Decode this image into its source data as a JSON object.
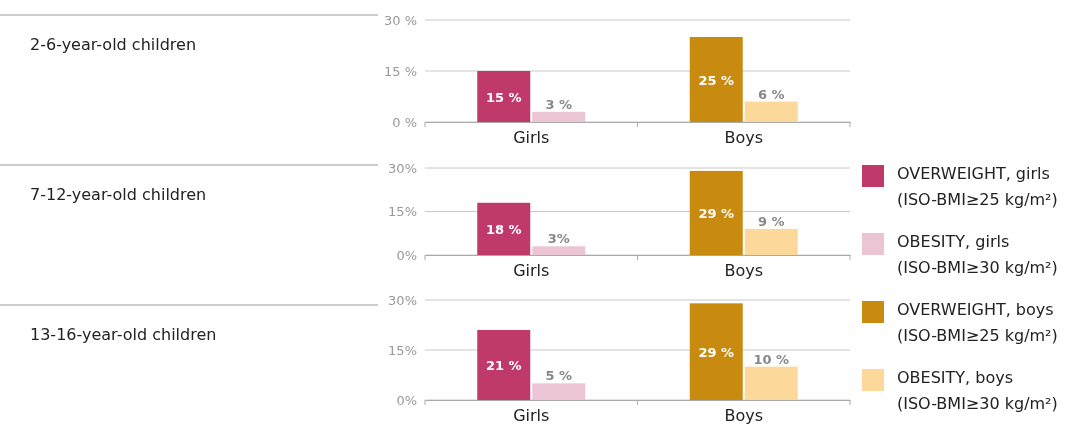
{
  "chart_data": [
    {
      "type": "bar",
      "ylabel": "2-6-year-old children",
      "categories": [
        "Girls",
        "Boys"
      ],
      "ylim": [
        0,
        30
      ],
      "yticks": [
        {
          "value": 0,
          "label": "0 %"
        },
        {
          "value": 15,
          "label": "15 %"
        },
        {
          "value": 30,
          "label": "30 %"
        }
      ],
      "grid": "y",
      "legend": "right",
      "series": [
        {
          "name": "OVERWEIGHT, girls (ISO-BMI≥25 kg/m²)",
          "color": "#c0396b",
          "values": [
            15,
            null
          ],
          "value_labels": [
            "15 %",
            null
          ]
        },
        {
          "name": "OBESITY, girls (ISO-BMI≥30 kg/m²)",
          "color": "#ecc5d5",
          "values": [
            3,
            null
          ],
          "value_labels": [
            "3 %",
            null
          ]
        },
        {
          "name": "OVERWEIGHT, boys (ISO-BMI≥25 kg/m²)",
          "color": "#c98a10",
          "values": [
            null,
            25
          ],
          "value_labels": [
            null,
            "25 %"
          ]
        },
        {
          "name": "OBESITY, boys (ISO-BMI≥30 kg/m²)",
          "color": "#fcd89a",
          "values": [
            null,
            6
          ],
          "value_labels": [
            null,
            "6 %"
          ]
        }
      ]
    },
    {
      "type": "bar",
      "ylabel": "7-12-year-old children",
      "categories": [
        "Girls",
        "Boys"
      ],
      "ylim": [
        0,
        30
      ],
      "yticks": [
        {
          "value": 0,
          "label": "0%"
        },
        {
          "value": 15,
          "label": "15%"
        },
        {
          "value": 30,
          "label": "30%"
        }
      ],
      "grid": "y",
      "series": [
        {
          "color": "#c0396b",
          "values": [
            18,
            null
          ],
          "value_labels": [
            "18 %",
            null
          ]
        },
        {
          "color": "#ecc5d5",
          "values": [
            3,
            null
          ],
          "value_labels": [
            "3%",
            null
          ]
        },
        {
          "color": "#c98a10",
          "values": [
            null,
            29
          ],
          "value_labels": [
            null,
            "29 %"
          ]
        },
        {
          "color": "#fcd89a",
          "values": [
            null,
            9
          ],
          "value_labels": [
            null,
            "9 %"
          ]
        }
      ]
    },
    {
      "type": "bar",
      "ylabel": "13-16-year-old children",
      "categories": [
        "Girls",
        "Boys"
      ],
      "ylim": [
        0,
        30
      ],
      "yticks": [
        {
          "value": 0,
          "label": "0%"
        },
        {
          "value": 15,
          "label": "15%"
        },
        {
          "value": 30,
          "label": "30%"
        }
      ],
      "grid": "y",
      "series": [
        {
          "color": "#c0396b",
          "values": [
            21,
            null
          ],
          "value_labels": [
            "21 %",
            null
          ]
        },
        {
          "color": "#ecc5d5",
          "values": [
            5,
            null
          ],
          "value_labels": [
            "5 %",
            null
          ]
        },
        {
          "color": "#c98a10",
          "values": [
            null,
            29
          ],
          "value_labels": [
            null,
            "29 %"
          ]
        },
        {
          "color": "#fcd89a",
          "values": [
            null,
            10
          ],
          "value_labels": [
            null,
            "10 %"
          ]
        }
      ]
    }
  ]
}
